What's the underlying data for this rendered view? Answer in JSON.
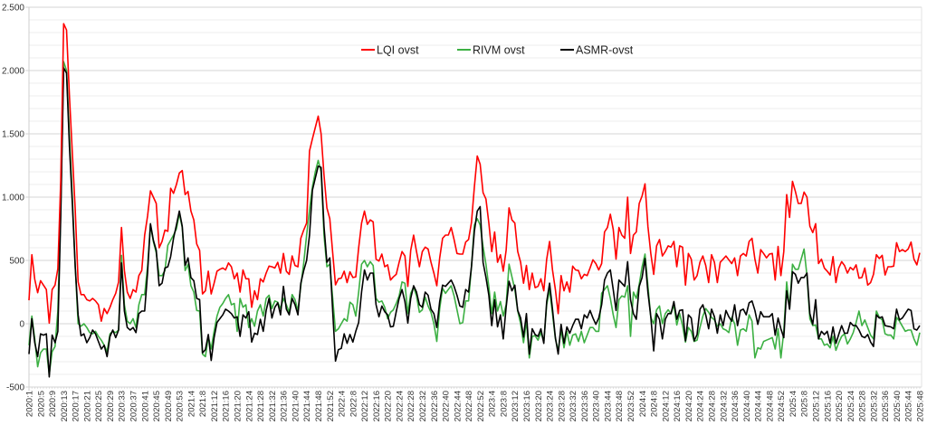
{
  "chart_data": {
    "type": "line",
    "title": "",
    "xlabel": "",
    "ylabel": "",
    "ylim": [
      -500,
      2500
    ],
    "y_major_step": 500,
    "y_minor_step": 100,
    "grid": true,
    "legend_position": "top-center",
    "y_tick_labels": [
      {
        "value": -500,
        "label": "-500"
      },
      {
        "value": 0,
        "label": "0"
      },
      {
        "value": 500,
        "label": "500"
      },
      {
        "value": 1000,
        "label": "1.000"
      },
      {
        "value": 1500,
        "label": "1.500"
      },
      {
        "value": 2000,
        "label": "2.000"
      },
      {
        "value": 2500,
        "label": "2.500"
      }
    ],
    "x_range_weeks": [
      0,
      308
    ],
    "x_first": "2020:1",
    "x_last": "2025:48",
    "x_tick_labels": [
      "2020:1",
      "2020:5",
      "2020:9",
      "2020:13",
      "2020:17",
      "2020:21",
      "2020:25",
      "2020:29",
      "2020:33",
      "2020:37",
      "2020:41",
      "2020:45",
      "2020:49",
      "2020:53",
      "2021:4",
      "2021:8",
      "2021:12",
      "2021:16",
      "2021:20",
      "2021:24",
      "2021:28",
      "2021:32",
      "2021:36",
      "2021:40",
      "2021:44",
      "2021:48",
      "2021:52",
      "2022:4",
      "2022:8",
      "2022:12",
      "2022:16",
      "2022:20",
      "2022:24",
      "2022:28",
      "2022:32",
      "2022:36",
      "2022:40",
      "2022:44",
      "2022:48",
      "2022:52",
      "2023:4",
      "2023:8",
      "2023:12",
      "2023:16",
      "2023:20",
      "2023:24",
      "2023:28",
      "2023:32",
      "2023:36",
      "2023:40",
      "2023:44",
      "2023:48",
      "2023:52",
      "2024:4",
      "2024:8",
      "2024:12",
      "2024:16",
      "2024:20",
      "2024:24",
      "2024:28",
      "2024:32",
      "2024:36",
      "2024:40",
      "2024:44",
      "2024:48",
      "2024:52",
      "2025:4",
      "2025:8",
      "2025:12",
      "2025:16",
      "2025:20",
      "2025:24",
      "2025:28",
      "2025:32",
      "2025:36",
      "2025:40",
      "2025:44",
      "2025:48"
    ],
    "series": [
      {
        "name": "LQI ovst",
        "color": "#ff0000",
        "values": [
          185,
          545,
          350,
          245,
          340,
          305,
          270,
          5,
          270,
          305,
          435,
          1130,
          2370,
          2320,
          1800,
          1350,
          900,
          330,
          230,
          230,
          190,
          180,
          200,
          180,
          150,
          20,
          120,
          80,
          130,
          190,
          240,
          330,
          760,
          420,
          250,
          200,
          270,
          250,
          380,
          420,
          700,
          850,
          1050,
          1000,
          950,
          600,
          650,
          740,
          730,
          1070,
          1030,
          1100,
          1190,
          1210,
          1020,
          1045,
          890,
          820,
          630,
          580,
          235,
          260,
          415,
          235,
          320,
          415,
          430,
          440,
          425,
          480,
          450,
          355,
          400,
          250,
          425,
          355,
          355,
          130,
          260,
          190,
          355,
          330,
          400,
          455,
          450,
          440,
          485,
          400,
          555,
          415,
          390,
          535,
          460,
          450,
          675,
          740,
          795,
          1365,
          1460,
          1550,
          1640,
          1500,
          1175,
          915,
          830,
          560,
          307,
          355,
          360,
          415,
          325,
          410,
          365,
          370,
          600,
          795,
          890,
          785,
          820,
          805,
          510,
          495,
          550,
          450,
          465,
          345,
          370,
          390,
          485,
          570,
          535,
          295,
          580,
          700,
          570,
          450,
          570,
          605,
          590,
          485,
          400,
          300,
          520,
          675,
          700,
          700,
          760,
          665,
          555,
          550,
          550,
          645,
          665,
          800,
          1080,
          1325,
          1260,
          1035,
          985,
          795,
          570,
          725,
          485,
          545,
          415,
          580,
          915,
          820,
          795,
          570,
          485,
          320,
          460,
          270,
          400,
          285,
          295,
          355,
          260,
          510,
          650,
          425,
          270,
          80,
          380,
          260,
          330,
          250,
          455,
          425,
          420,
          355,
          390,
          380,
          440,
          505,
          475,
          425,
          475,
          725,
          760,
          865,
          745,
          510,
          760,
          700,
          675,
          1000,
          555,
          700,
          725,
          950,
          1010,
          1105,
          770,
          555,
          390,
          615,
          665,
          535,
          570,
          615,
          605,
          650,
          450,
          615,
          605,
          305,
          555,
          510,
          345,
          380,
          485,
          535,
          460,
          325,
          545,
          485,
          325,
          485,
          510,
          535,
          505,
          475,
          520,
          380,
          535,
          555,
          535,
          650,
          675,
          510,
          400,
          585,
          555,
          520,
          550,
          555,
          345,
          610,
          380,
          570,
          1020,
          840,
          1125,
          1045,
          950,
          950,
          1040,
          1000,
          770,
          720,
          790,
          475,
          510,
          440,
          415,
          385,
          530,
          325,
          440,
          490,
          460,
          400,
          445,
          425,
          465,
          360,
          365,
          440,
          305,
          325,
          390,
          545,
          515,
          540,
          385,
          450,
          450,
          455,
          640,
          570,
          585,
          570,
          590,
          645,
          510,
          465,
          560
        ]
      },
      {
        "name": "RIVM ovst",
        "color": "#3cb043",
        "values": [
          -170,
          60,
          -120,
          -340,
          -230,
          -200,
          -200,
          -400,
          -220,
          -180,
          100,
          900,
          2070,
          2000,
          1500,
          1000,
          450,
          0,
          -20,
          0,
          -30,
          -70,
          -80,
          -60,
          -100,
          -130,
          -170,
          -220,
          -80,
          -60,
          -70,
          -50,
          540,
          150,
          20,
          0,
          40,
          -30,
          150,
          230,
          230,
          450,
          780,
          650,
          560,
          380,
          380,
          420,
          620,
          660,
          700,
          750,
          870,
          760,
          420,
          470,
          300,
          250,
          105,
          100,
          -240,
          -260,
          -100,
          -200,
          -60,
          60,
          130,
          160,
          200,
          230,
          150,
          160,
          -60,
          200,
          130,
          150,
          -30,
          40,
          -20,
          100,
          150,
          60,
          200,
          225,
          120,
          180,
          170,
          120,
          200,
          150,
          90,
          230,
          190,
          100,
          300,
          480,
          700,
          900,
          1080,
          1200,
          1290,
          1200,
          700,
          450,
          470,
          200,
          -60,
          -40,
          0,
          40,
          20,
          170,
          150,
          60,
          250,
          470,
          500,
          450,
          490,
          460,
          200,
          170,
          180,
          130,
          40,
          90,
          110,
          160,
          220,
          330,
          320,
          80,
          240,
          290,
          220,
          90,
          110,
          210,
          140,
          90,
          0,
          -140,
          120,
          280,
          240,
          270,
          300,
          220,
          110,
          0,
          10,
          180,
          180,
          450,
          780,
          830,
          780,
          610,
          470,
          290,
          80,
          250,
          100,
          175,
          60,
          150,
          470,
          370,
          270,
          100,
          0,
          -150,
          20,
          -270,
          -100,
          -95,
          -130,
          -70,
          -140,
          150,
          270,
          80,
          -120,
          -210,
          -50,
          -190,
          -60,
          -170,
          -90,
          -80,
          -140,
          -60,
          -150,
          -90,
          -30,
          -30,
          -60,
          -60,
          240,
          270,
          300,
          200,
          70,
          -30,
          190,
          220,
          210,
          300,
          -100,
          250,
          200,
          310,
          450,
          550,
          300,
          50,
          0,
          110,
          140,
          0,
          80,
          110,
          80,
          150,
          -10,
          80,
          -15,
          -145,
          -30,
          -60,
          -140,
          -130,
          -30,
          60,
          120,
          90,
          50,
          30,
          -20,
          0,
          -40,
          -50,
          -70,
          50,
          0,
          -170,
          -50,
          -40,
          -60,
          70,
          20,
          -270,
          -190,
          -200,
          -140,
          -130,
          -120,
          -110,
          -200,
          -40,
          -270,
          -60,
          330,
          120,
          470,
          430,
          430,
          510,
          590,
          380,
          40,
          -15,
          -10,
          -120,
          -120,
          -170,
          -160,
          -190,
          -100,
          -210,
          -150,
          -100,
          -80,
          -160,
          -120,
          -70,
          10,
          100,
          -15,
          30,
          -30,
          -90,
          -120,
          100,
          50,
          30,
          -80,
          -90,
          -90,
          -120,
          50,
          20,
          -20,
          -60,
          -50,
          -50,
          -120,
          -170,
          -70
        ]
      },
      {
        "name": "ASMR-ovst",
        "color": "#000000",
        "values": [
          -240,
          40,
          -150,
          -260,
          -80,
          -90,
          -80,
          -420,
          -90,
          -150,
          -60,
          850,
          2020,
          1980,
          1400,
          950,
          450,
          70,
          -95,
          -80,
          -150,
          -110,
          -50,
          -80,
          -140,
          -200,
          -170,
          -260,
          -100,
          -50,
          -110,
          -50,
          480,
          100,
          -30,
          -50,
          -30,
          -70,
          80,
          100,
          100,
          400,
          790,
          660,
          580,
          300,
          320,
          440,
          450,
          530,
          675,
          780,
          890,
          770,
          460,
          520,
          365,
          340,
          200,
          190,
          -230,
          -205,
          -85,
          -290,
          -110,
          10,
          40,
          70,
          115,
          100,
          80,
          45,
          55,
          -100,
          70,
          45,
          95,
          -145,
          -75,
          -85,
          35,
          -60,
          105,
          200,
          45,
          130,
          165,
          70,
          295,
          115,
          70,
          200,
          150,
          70,
          320,
          420,
          500,
          700,
          1055,
          1150,
          1245,
          1235,
          770,
          485,
          520,
          100,
          -295,
          -205,
          -195,
          -80,
          -155,
          -85,
          -145,
          -60,
          10,
          250,
          425,
          345,
          400,
          400,
          150,
          55,
          140,
          95,
          70,
          -25,
          -20,
          95,
          200,
          270,
          175,
          5,
          200,
          300,
          250,
          150,
          130,
          250,
          225,
          115,
          80,
          -30,
          175,
          305,
          295,
          320,
          345,
          295,
          225,
          140,
          130,
          270,
          250,
          450,
          730,
          890,
          925,
          485,
          365,
          225,
          -15,
          190,
          -25,
          70,
          -120,
          130,
          335,
          260,
          305,
          105,
          45,
          -105,
          80,
          -240,
          -40,
          -85,
          -100,
          -40,
          -155,
          175,
          320,
          115,
          -110,
          -240,
          -5,
          -155,
          -25,
          -75,
          -15,
          35,
          35,
          -40,
          70,
          45,
          105,
          45,
          -5,
          45,
          150,
          345,
          400,
          425,
          270,
          105,
          345,
          320,
          295,
          490,
          190,
          80,
          35,
          295,
          365,
          515,
          250,
          55,
          -215,
          80,
          35,
          -120,
          35,
          80,
          80,
          175,
          35,
          105,
          110,
          -135,
          70,
          45,
          -135,
          -85,
          115,
          150,
          70,
          -40,
          115,
          55,
          -75,
          70,
          -15,
          105,
          55,
          20,
          150,
          -15,
          105,
          115,
          70,
          165,
          180,
          105,
          -5,
          95,
          55,
          55,
          55,
          80,
          -90,
          45,
          -40,
          -110,
          260,
          115,
          410,
          390,
          320,
          365,
          365,
          400,
          80,
          -5,
          190,
          -120,
          -60,
          -85,
          -60,
          -155,
          -25,
          -155,
          -85,
          -15,
          -75,
          -75,
          10,
          -15,
          -15,
          -50,
          -100,
          -110,
          -85,
          -145,
          -180,
          70,
          45,
          55,
          -15,
          -20,
          -25,
          -40,
          115,
          30,
          45,
          80,
          115,
          105,
          -40,
          -50,
          -15
        ]
      }
    ]
  }
}
